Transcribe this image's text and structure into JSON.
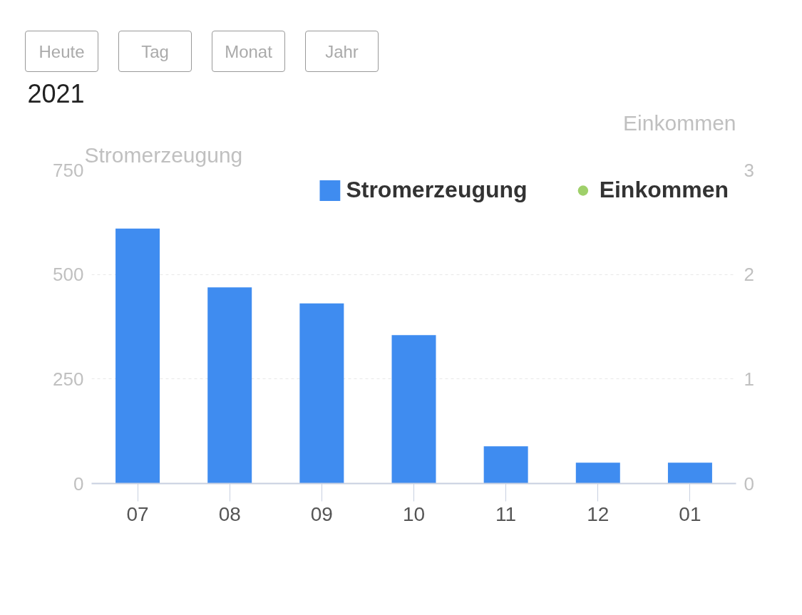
{
  "chart_data": {
    "type": "bar",
    "title": "2021",
    "ylabel": "Stromerzeugung",
    "y2label": "Einkommen",
    "annotations": [
      "Heute",
      "Tag",
      "Monat",
      "Jahr"
    ],
    "categories": [
      "07",
      "08",
      "09",
      "10",
      "11",
      "12",
      "01"
    ],
    "series": [
      {
        "name": "Stromerzeugung",
        "color": "#3f8cf0",
        "values": [
          610,
          469,
          431,
          355,
          89,
          50,
          50
        ]
      },
      {
        "name": "Einkommen",
        "type": "scatter",
        "color": "#9fd06a",
        "values": [
          null,
          null,
          null,
          null,
          null,
          null,
          null
        ]
      }
    ],
    "ylim": [
      0,
      750
    ],
    "yticks": [
      0,
      250,
      500,
      750
    ],
    "y2lim": [
      0,
      3
    ],
    "y2ticks": [
      0,
      1,
      2,
      3
    ],
    "grid": "y",
    "legend": "top right",
    "marker": "circle"
  }
}
